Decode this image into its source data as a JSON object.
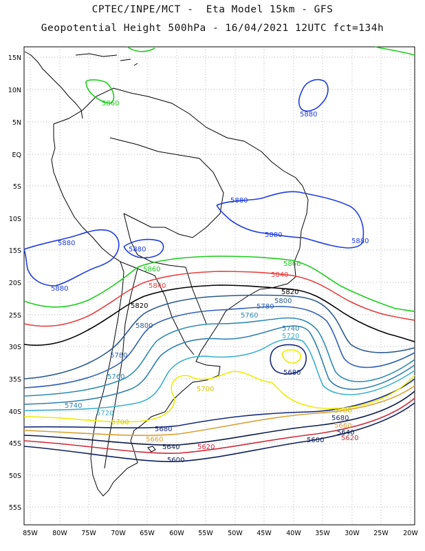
{
  "title_line1": "CPTEC/INPE/MCT -  Eta Model 15km - GFS",
  "title_line2": "Geopotential Height 500hPa - 16/04/2021 12UTC fct=134h",
  "lat_labels": [
    "15N",
    "10N",
    "5N",
    "EQ",
    "5S",
    "10S",
    "15S",
    "20S",
    "25S",
    "30S",
    "35S",
    "40S",
    "45S",
    "50S",
    "55S"
  ],
  "lon_labels": [
    "85W",
    "80W",
    "75W",
    "70W",
    "65W",
    "60W",
    "55W",
    "50W",
    "45W",
    "40W",
    "35W",
    "30W",
    "25W",
    "20W"
  ],
  "colors": {
    "c5880": "#1e3cdc",
    "c5860": "#19cc19",
    "c5840": "#e83c3c",
    "c5820": "#000000",
    "c5800": "#2a5a8c",
    "c5780": "#2f5fb4",
    "c5760": "#2e8ab2",
    "c5740": "#2e7fae",
    "c5720": "#3bb0d0",
    "c5700": "#ecec00",
    "c5680": "#14287a",
    "c5660": "#d8a030",
    "c5640": "#0a1a4a",
    "c5620": "#cc2a3a",
    "c5600": "#0e1e5e"
  },
  "contour_labels": {
    "l5860a": "5860",
    "l5880a": "5880",
    "l5880b": "5880",
    "l5880c": "5880",
    "l5880d": "5880",
    "l5880e": "5880",
    "l5880f": "5880",
    "l5880g": "5880",
    "l5860b": "5860",
    "l5860c": "5860",
    "l5840a": "5840",
    "l5840b": "5840",
    "l5820a": "5820",
    "l5820b": "5820",
    "l5800a": "5800",
    "l5800b": "5800",
    "l5780a": "5780",
    "l5780b": "5780",
    "l5760a": "5760",
    "l5760b": "5760",
    "l5740a": "5740",
    "l5740b": "5740",
    "l5720a": "5720",
    "l5720b": "5720",
    "l5700a": "5700",
    "l5700b": "5700",
    "l5700c": "5700",
    "l5680a": "5680",
    "l5680b": "5680",
    "l5680c": "5680",
    "l5660a": "5660",
    "l5660b": "5660",
    "l5640a": "5640",
    "l5640b": "5640",
    "l5620a": "5620",
    "l5620b": "5620",
    "l5600a": "5600",
    "l5600b": "5600"
  }
}
